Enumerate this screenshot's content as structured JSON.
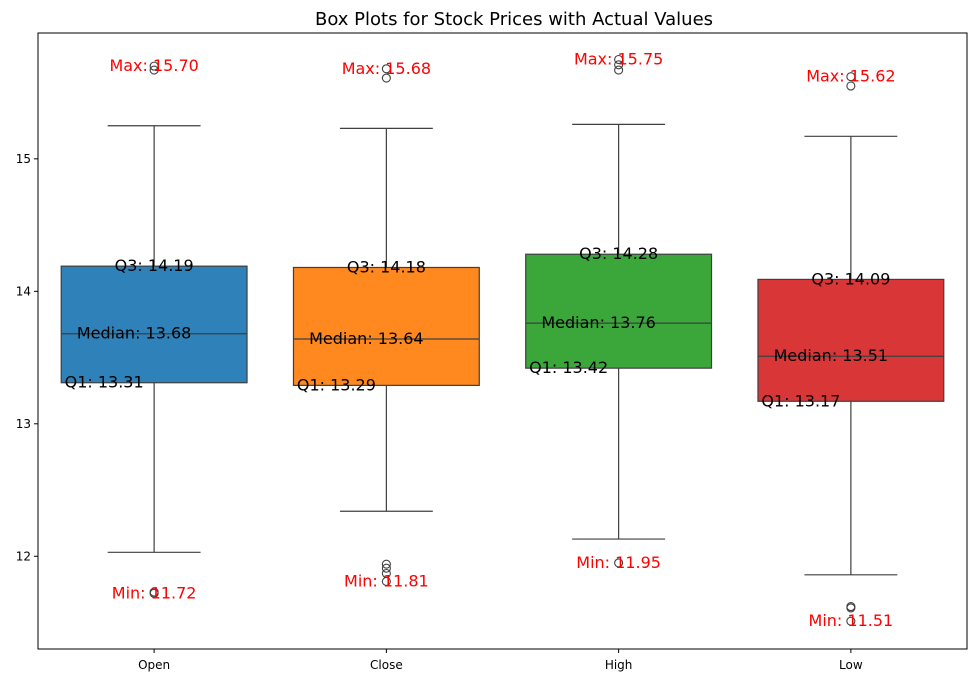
{
  "chart_data": {
    "type": "box",
    "title": "Box Plots for Stock Prices with Actual Values",
    "xlabel": "",
    "ylabel": "",
    "ylim": [
      11.3,
      15.95
    ],
    "yticks": [
      12,
      13,
      14,
      15
    ],
    "grid": false,
    "categories": [
      "Open",
      "Close",
      "High",
      "Low"
    ],
    "colors": [
      "#1f77b4",
      "#ff7f0e",
      "#2ca02c",
      "#d62728"
    ],
    "boxes": [
      {
        "name": "Open",
        "whisker_low": 12.03,
        "q1": 13.31,
        "median": 13.68,
        "q3": 14.19,
        "whisker_high": 15.25,
        "outliers": [
          15.7,
          15.67,
          11.72,
          11.73
        ],
        "labels": {
          "max": "Max: 15.70",
          "q3": "Q3: 14.19",
          "median": "Median: 13.68",
          "q1": "Q1: 13.31",
          "min": "Min: 11.72"
        }
      },
      {
        "name": "Close",
        "whisker_low": 12.34,
        "q1": 13.29,
        "median": 13.64,
        "q3": 14.18,
        "whisker_high": 15.23,
        "outliers": [
          15.68,
          15.61,
          11.94,
          11.91,
          11.87,
          11.81
        ],
        "labels": {
          "max": "Max: 15.68",
          "q3": "Q3: 14.18",
          "median": "Median: 13.64",
          "q1": "Q1: 13.29",
          "min": "Min: 11.81"
        }
      },
      {
        "name": "High",
        "whisker_low": 12.13,
        "q1": 13.42,
        "median": 13.76,
        "q3": 14.28,
        "whisker_high": 15.26,
        "outliers": [
          15.75,
          15.71,
          15.67,
          11.95
        ],
        "labels": {
          "max": "Max: 15.75",
          "q3": "Q3: 14.28",
          "median": "Median: 13.76",
          "q1": "Q1: 13.42",
          "min": "Min: 11.95"
        }
      },
      {
        "name": "Low",
        "whisker_low": 11.86,
        "q1": 13.17,
        "median": 13.51,
        "q3": 14.09,
        "whisker_high": 15.17,
        "outliers": [
          15.62,
          15.55,
          11.62,
          11.61,
          11.51
        ],
        "labels": {
          "max": "Max: 15.62",
          "q3": "Q3: 14.09",
          "median": "Median: 13.51",
          "q1": "Q1: 13.17",
          "min": "Min: 11.51"
        }
      }
    ]
  }
}
